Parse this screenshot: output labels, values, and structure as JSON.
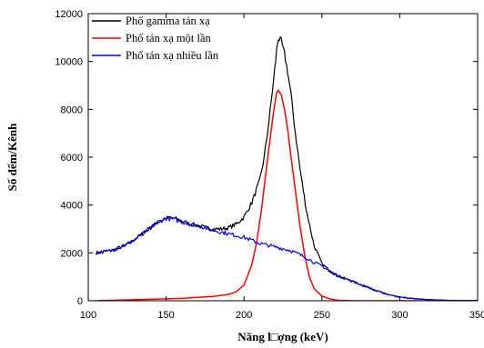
{
  "chart_data": {
    "type": "line",
    "title": "",
    "xlabel": "Năng l□ợng (keV)",
    "ylabel": "Số đếm/Kênh",
    "xlim": [
      100,
      350
    ],
    "ylim": [
      0,
      12000
    ],
    "x_ticks": [
      100,
      150,
      200,
      250,
      300,
      350
    ],
    "y_ticks": [
      0,
      2000,
      4000,
      6000,
      8000,
      10000,
      12000
    ],
    "grid": false,
    "legend_position": "top-left",
    "series": [
      {
        "name": "Phổ gamma tán xạ",
        "color": "#000000",
        "points": [
          [
            105,
            2000
          ],
          [
            115,
            2100
          ],
          [
            125,
            2350
          ],
          [
            135,
            2800
          ],
          [
            145,
            3300
          ],
          [
            150,
            3450
          ],
          [
            155,
            3450
          ],
          [
            160,
            3350
          ],
          [
            165,
            3200
          ],
          [
            170,
            3150
          ],
          [
            175,
            3050
          ],
          [
            180,
            3000
          ],
          [
            185,
            3000
          ],
          [
            190,
            3050
          ],
          [
            195,
            3200
          ],
          [
            200,
            3500
          ],
          [
            205,
            4100
          ],
          [
            210,
            5000
          ],
          [
            213,
            6000
          ],
          [
            216,
            7500
          ],
          [
            219,
            9200
          ],
          [
            221,
            10500
          ],
          [
            222,
            11000
          ],
          [
            224,
            10800
          ],
          [
            226,
            10300
          ],
          [
            228,
            9600
          ],
          [
            230,
            8700
          ],
          [
            233,
            7000
          ],
          [
            236,
            5500
          ],
          [
            240,
            3800
          ],
          [
            245,
            2300
          ],
          [
            250,
            1550
          ],
          [
            255,
            1250
          ],
          [
            260,
            1050
          ],
          [
            270,
            800
          ],
          [
            280,
            550
          ],
          [
            290,
            300
          ],
          [
            300,
            150
          ],
          [
            310,
            80
          ],
          [
            320,
            40
          ],
          [
            330,
            20
          ],
          [
            340,
            10
          ],
          [
            350,
            10
          ]
        ]
      },
      {
        "name": "Phổ tán xạ một lần",
        "color": "#ff0000",
        "points": [
          [
            105,
            0
          ],
          [
            120,
            30
          ],
          [
            140,
            60
          ],
          [
            160,
            100
          ],
          [
            180,
            180
          ],
          [
            190,
            260
          ],
          [
            195,
            380
          ],
          [
            200,
            650
          ],
          [
            205,
            1500
          ],
          [
            208,
            2400
          ],
          [
            211,
            3700
          ],
          [
            214,
            5300
          ],
          [
            217,
            6900
          ],
          [
            219,
            7900
          ],
          [
            221,
            8700
          ],
          [
            222,
            8800
          ],
          [
            224,
            8600
          ],
          [
            226,
            8000
          ],
          [
            228,
            7200
          ],
          [
            230,
            6100
          ],
          [
            233,
            4600
          ],
          [
            236,
            3100
          ],
          [
            239,
            1900
          ],
          [
            242,
            1000
          ],
          [
            245,
            500
          ],
          [
            250,
            200
          ],
          [
            255,
            80
          ],
          [
            260,
            20
          ],
          [
            270,
            0
          ],
          [
            350,
            0
          ]
        ]
      },
      {
        "name": "Phổ tán xạ nhiều lần",
        "color": "#0000ff",
        "points": [
          [
            105,
            2000
          ],
          [
            115,
            2100
          ],
          [
            125,
            2350
          ],
          [
            135,
            2800
          ],
          [
            145,
            3300
          ],
          [
            150,
            3450
          ],
          [
            155,
            3400
          ],
          [
            160,
            3300
          ],
          [
            170,
            3150
          ],
          [
            180,
            2950
          ],
          [
            190,
            2800
          ],
          [
            200,
            2650
          ],
          [
            210,
            2400
          ],
          [
            220,
            2250
          ],
          [
            230,
            2100
          ],
          [
            240,
            1800
          ],
          [
            245,
            1600
          ],
          [
            250,
            1450
          ],
          [
            255,
            1250
          ],
          [
            260,
            1050
          ],
          [
            270,
            800
          ],
          [
            280,
            550
          ],
          [
            290,
            300
          ],
          [
            300,
            150
          ],
          [
            310,
            80
          ],
          [
            320,
            40
          ],
          [
            330,
            20
          ],
          [
            340,
            10
          ],
          [
            350,
            10
          ]
        ]
      }
    ]
  }
}
